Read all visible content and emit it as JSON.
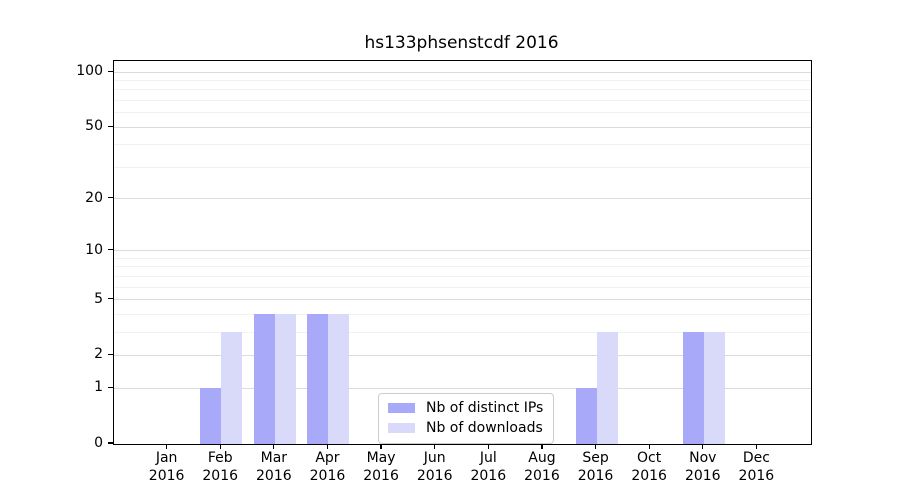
{
  "chart_data": {
    "type": "bar",
    "title": "hs133phsenstcdf 2016",
    "categories": [
      "Jan",
      "Feb",
      "Mar",
      "Apr",
      "May",
      "Jun",
      "Jul",
      "Aug",
      "Sep",
      "Oct",
      "Nov",
      "Dec"
    ],
    "category_year": "2016",
    "series": [
      {
        "name": "Nb of distinct IPs",
        "color": "#a9a9f9",
        "values": [
          0,
          1,
          4,
          4,
          0,
          0,
          0,
          0,
          1,
          0,
          3,
          0
        ]
      },
      {
        "name": "Nb of downloads",
        "color": "#d9d9f9",
        "values": [
          0,
          3,
          4,
          4,
          0,
          0,
          0,
          0,
          3,
          0,
          3,
          0
        ]
      }
    ],
    "xlabel": "",
    "ylabel": "",
    "y_axis": {
      "scale": "log1p",
      "ticks": [
        100,
        50,
        20,
        10,
        5,
        2,
        1,
        0
      ],
      "ylim": [
        0,
        115
      ],
      "major_gridlines": [
        1,
        2,
        5,
        10,
        20,
        50,
        100
      ],
      "minor_gridlines": [
        3,
        4,
        6,
        7,
        8,
        9,
        30,
        40,
        60,
        70,
        80,
        90
      ]
    },
    "legend": {
      "position": "lower center"
    },
    "colors": {
      "bar_distinct_ips": "#a9a9f9",
      "bar_downloads": "#d9d9f9",
      "major_grid": "#dcdcdc",
      "minor_grid": "#f2f2f2",
      "spine": "#000000",
      "legend_border": "#cccccc"
    }
  }
}
